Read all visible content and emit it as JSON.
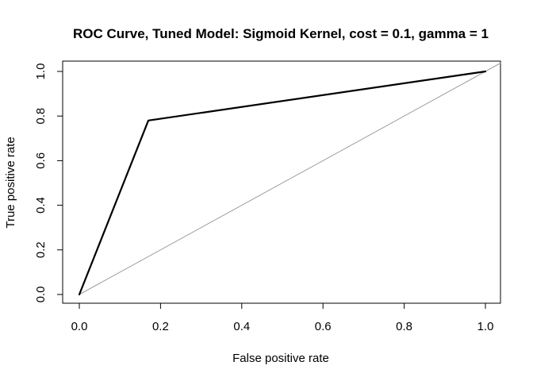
{
  "chart_data": {
    "type": "line",
    "title": "ROC Curve, Tuned Model: Sigmoid Kernel, cost = 0.1, gamma = 1",
    "xlabel": "False positive rate",
    "ylabel": "True positive rate",
    "xlim": [
      0,
      1
    ],
    "ylim": [
      0,
      1
    ],
    "x_ticks": [
      "0.0",
      "0.2",
      "0.4",
      "0.6",
      "0.8",
      "1.0"
    ],
    "y_ticks": [
      "0.0",
      "0.2",
      "0.4",
      "0.6",
      "0.8",
      "1.0"
    ],
    "grid": false,
    "legend": "none",
    "series": [
      {
        "x": [
          0.0,
          0.17,
          1.0
        ],
        "y": [
          0.0,
          0.78,
          1.0
        ],
        "color": "#000000"
      }
    ],
    "reference_line": {
      "x": [
        0,
        1
      ],
      "y": [
        0,
        1
      ],
      "color": "#9e9e9e"
    }
  }
}
